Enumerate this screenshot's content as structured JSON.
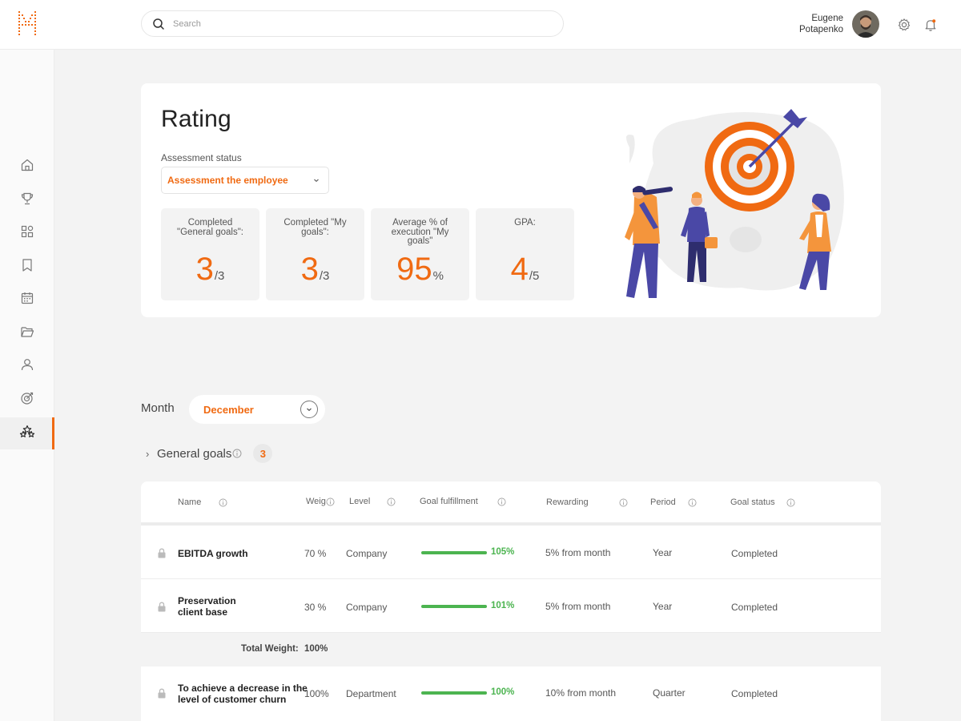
{
  "header": {
    "search_placeholder": "Search",
    "user_first": "Eugene",
    "user_last": "Potapenko"
  },
  "sidebar": {
    "items": [
      {
        "icon": "home-icon"
      },
      {
        "icon": "trophy-icon"
      },
      {
        "icon": "widgets-icon"
      },
      {
        "icon": "bookmark-icon"
      },
      {
        "icon": "calendar-icon"
      },
      {
        "icon": "folder-icon"
      },
      {
        "icon": "user-icon"
      },
      {
        "icon": "target-icon"
      },
      {
        "icon": "stars-icon",
        "active": true
      }
    ]
  },
  "rating": {
    "title": "Rating",
    "status_label": "Assessment status",
    "status_value": "Assessment the employee",
    "stats": [
      {
        "label": "Completed \"General goals\":",
        "value": "3",
        "suffix": "/3"
      },
      {
        "label": "Completed \"My goals\":",
        "value": "3",
        "suffix": "/3"
      },
      {
        "label": "Average % of execution \"My goals\"",
        "value": "95",
        "suffix": "%"
      },
      {
        "label": "GPA:",
        "value": "4",
        "suffix": "/5"
      }
    ]
  },
  "filters": {
    "month_label": "Month",
    "month_value": "December"
  },
  "group": {
    "name": "General goals",
    "count": "3"
  },
  "table": {
    "headers": {
      "name": "Name",
      "weight": "Weig",
      "level": "Level",
      "fulfillment": "Goal fulfillment",
      "rewarding": "Rewarding",
      "period": "Period",
      "status": "Goal status"
    },
    "rows": [
      {
        "name_l1": "EBITDA growth",
        "name_l2": "",
        "weight": "70 %",
        "level": "Company",
        "fulfillment": 1.05,
        "fulfillment_label": "105%",
        "rewarding": "5% from month",
        "period": "Year",
        "status": "Completed"
      },
      {
        "name_l1": "Preservation",
        "name_l2": "client base",
        "weight": "30 %",
        "level": "Company",
        "fulfillment": 1.01,
        "fulfillment_label": "101%",
        "rewarding": "5% from month",
        "period": "Year",
        "status": "Completed"
      },
      {
        "name_l1": "To achieve a decrease in the",
        "name_l2": "level of customer churn",
        "weight": "100%",
        "level": "Department",
        "fulfillment": 1.0,
        "fulfillment_label": "100%",
        "rewarding": "10% from month",
        "period": "Quarter",
        "status": "Completed"
      }
    ],
    "total_label": "Total Weight:",
    "total_value": "100%"
  },
  "colors": {
    "accent": "#f06a12",
    "success": "#4cb450",
    "illustration_purple": "#4a48a6"
  }
}
